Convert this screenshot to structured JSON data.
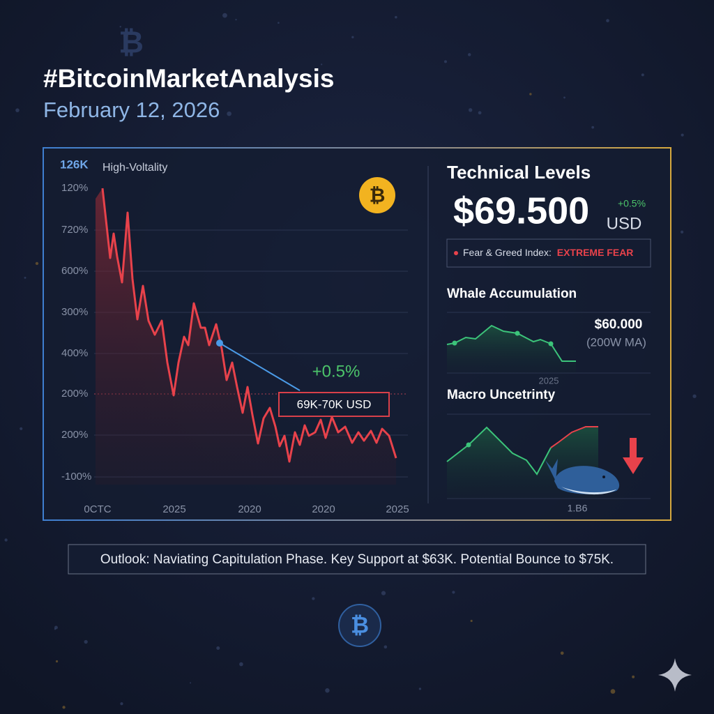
{
  "header": {
    "title": "#BitcoinMarketAnalysis",
    "date": "February 12, 2026"
  },
  "icon": "₿",
  "main_chart": {
    "label": "126K",
    "subtitle": "High-Voltality",
    "y_labels": [
      "120%",
      "720%",
      "600%",
      "300%",
      "400%",
      "200%",
      "200%",
      "-100%"
    ],
    "x_labels": [
      "0CTC",
      "2025",
      "2020",
      "2020",
      "2025"
    ],
    "change": "+0.5%",
    "range": "69K-70K USD"
  },
  "technical": {
    "title": "Technical Levels",
    "price": "$69.500",
    "change": "+0.5%",
    "currency": "USD",
    "sentiment_label": "Fear & Greed Index:",
    "sentiment_value": "EXTREME FEAR"
  },
  "whale": {
    "title": "Whale Accumulation",
    "price": "$60.000",
    "note": "(200W MA)",
    "year": "2025"
  },
  "macro": {
    "title": "Macro Uncetrinty",
    "label": "1.B6"
  },
  "outlook": "Outlook: Naviating Capitulation Phase. Key Support at $63K. Potential Bounce to $75K."
}
